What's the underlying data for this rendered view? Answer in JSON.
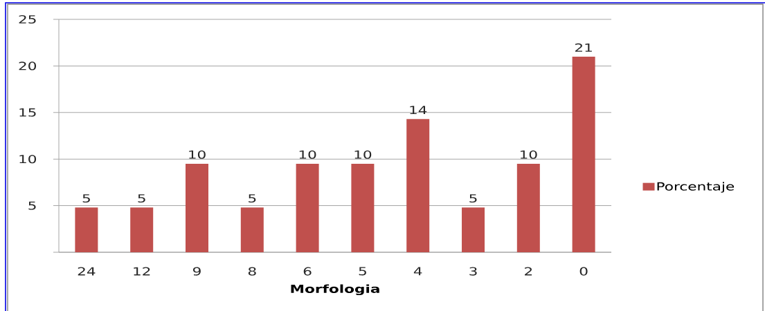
{
  "chart_data": {
    "type": "bar",
    "categories": [
      "24",
      "12",
      "9",
      "8",
      "6",
      "5",
      "4",
      "3",
      "2",
      "0"
    ],
    "series": [
      {
        "name": "Porcentaje",
        "color": "#c0504d",
        "values": [
          4.8,
          4.8,
          9.5,
          4.8,
          9.5,
          9.5,
          14.3,
          4.8,
          9.5,
          21
        ],
        "value_labels": [
          "5",
          "5",
          "10",
          "5",
          "10",
          "10",
          "14",
          "5",
          "10",
          "21"
        ]
      }
    ],
    "xlabel": "Morfologia",
    "ylim": [
      0,
      25
    ],
    "yticks": [
      {
        "value": 0,
        "label": null
      },
      5,
      10,
      15,
      20,
      25
    ],
    "grid": "y",
    "legend": "right"
  }
}
